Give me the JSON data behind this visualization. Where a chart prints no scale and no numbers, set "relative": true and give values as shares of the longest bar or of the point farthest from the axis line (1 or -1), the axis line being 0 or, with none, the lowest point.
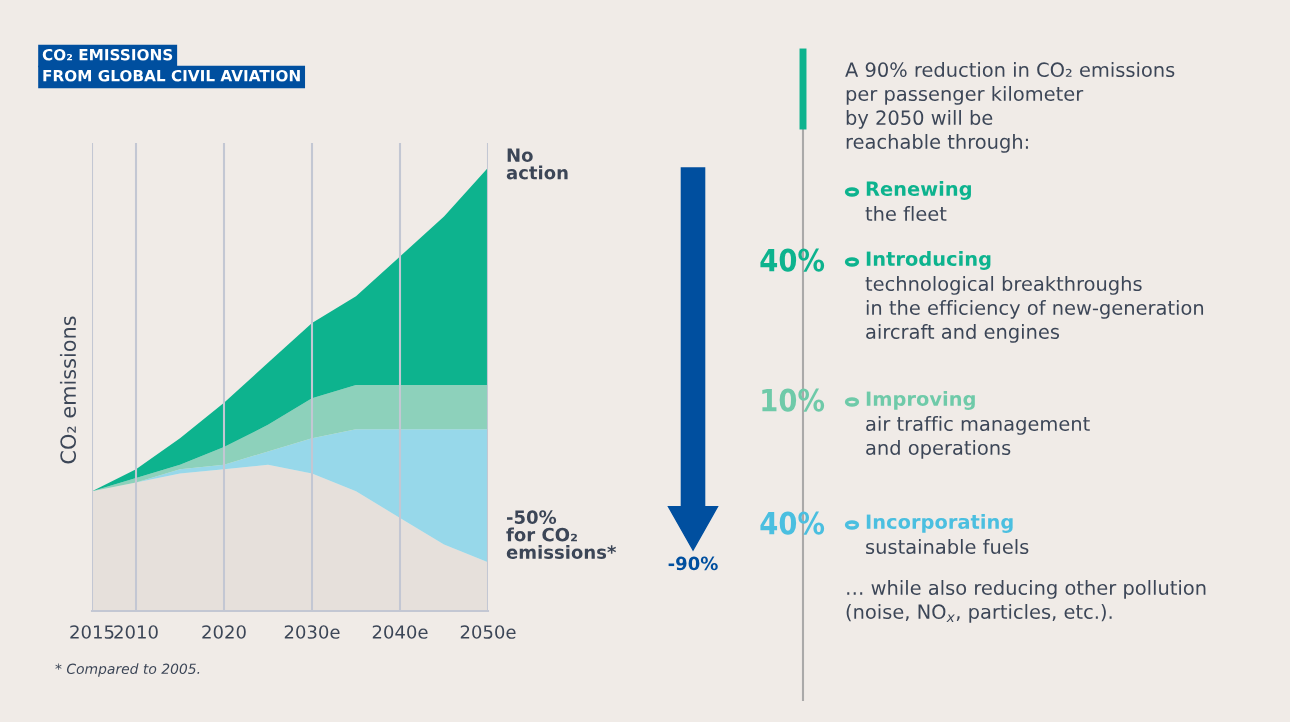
{
  "chart_data": [
    {
      "type": "area",
      "title": "CO₂ EMISSIONS\nFROM GLOBAL CIVIL AVIATION",
      "ylabel": "CO₂ emissions",
      "relative": true,
      "categories": [
        "2015",
        "2010",
        null,
        "2020",
        null,
        "2030e",
        null,
        "2040e",
        null,
        "2050e"
      ],
      "grid": "x",
      "stacked": true,
      "series": [
        {
          "color": "#e6e0db",
          "values": [
            0.27,
            0.29,
            0.31,
            0.32,
            0.33,
            0.31,
            0.27,
            0.21,
            0.15,
            0.11
          ]
        },
        {
          "color": "#97d8ea",
          "values": [
            0,
            0,
            0.01,
            0.01,
            0.03,
            0.08,
            0.14,
            0.2,
            0.26,
            0.3
          ]
        },
        {
          "color": "#8dd1bb",
          "values": [
            0,
            0.01,
            0.01,
            0.04,
            0.06,
            0.09,
            0.1,
            0.1,
            0.1,
            0.1
          ]
        },
        {
          "color": "#0db38e",
          "values": [
            0,
            0.02,
            0.06,
            0.1,
            0.14,
            0.17,
            0.2,
            0.29,
            0.38,
            0.49
          ]
        }
      ],
      "annotations": [
        "No\naction",
        "-50%\nfor CO₂\nemissions*",
        "-90%",
        "* Compared to 2005."
      ]
    },
    {
      "type": "other",
      "annotations": [
        "A 90% reduction in CO₂ emissions\nper passenger kilometer\nby 2050 will be\nreachable through:",
        "Renewing",
        "the fleet",
        "40%",
        "Introducing",
        "technological breakthroughs\nin the efficiency of new-generation\naircraft and engines",
        "10%",
        "Improving",
        "air traffic management\nand operations",
        "40%",
        "Incorporating",
        "sustainable fuels",
        "… while also reducing other pollution\n(noise, NO$_{x}$, particles, etc.)."
      ]
    }
  ]
}
